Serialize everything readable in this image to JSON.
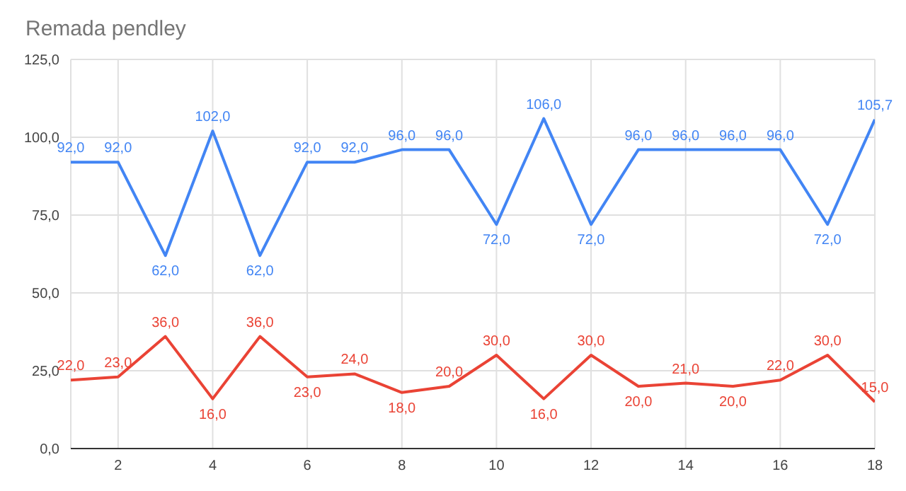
{
  "chart_data": {
    "type": "line",
    "title": "Remada pendley",
    "x": [
      1,
      2,
      3,
      4,
      5,
      6,
      7,
      8,
      9,
      10,
      11,
      12,
      13,
      14,
      15,
      16,
      17,
      18
    ],
    "series": [
      {
        "color": "#4285f4",
        "values": [
          92,
          92,
          62,
          102,
          62,
          92,
          92,
          96,
          96,
          72,
          106,
          72,
          96,
          96,
          96,
          96,
          72,
          105.7
        ],
        "value_labels": [
          "92,0",
          "92,0",
          "62,0",
          "102,0",
          "62,0",
          "92,0",
          "92,0",
          "96,0",
          "96,0",
          "72,0",
          "106,0",
          "72,0",
          "96,0",
          "96,0",
          "96,0",
          "96,0",
          "72,0",
          "105,7"
        ]
      },
      {
        "color": "#ea4335",
        "values": [
          22,
          23,
          36,
          16,
          36,
          23,
          24,
          18,
          20,
          30,
          16,
          30,
          20,
          21,
          20,
          22,
          30,
          15
        ],
        "value_labels": [
          "22,0",
          "23,0",
          "36,0",
          "16,0",
          "36,0",
          "23,0",
          "24,0",
          "18,0",
          "20,0",
          "30,0",
          "16,0",
          "30,0",
          "20,0",
          "21,0",
          "20,0",
          "22,0",
          "30,0",
          "15,0"
        ]
      }
    ],
    "xlim": [
      1,
      18
    ],
    "xticks": [
      2,
      4,
      6,
      8,
      10,
      12,
      14,
      16,
      18
    ],
    "ylim": [
      0,
      125
    ],
    "yticks": [
      {
        "value": 0,
        "label": "0,0"
      },
      {
        "value": 25,
        "label": "25,0"
      },
      {
        "value": 50,
        "label": "50,0"
      },
      {
        "value": 75,
        "label": "75,0"
      },
      {
        "value": 100,
        "label": "100,0"
      },
      {
        "value": 125,
        "label": "125,0"
      }
    ],
    "grid": true,
    "legend": false
  }
}
